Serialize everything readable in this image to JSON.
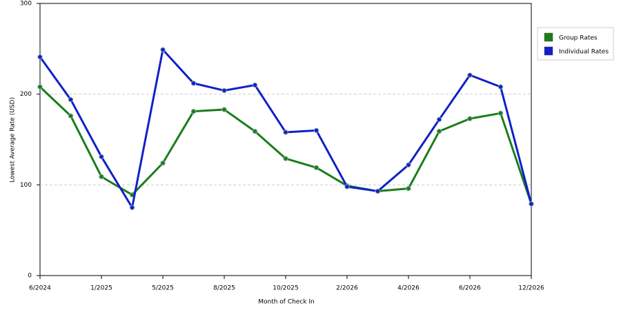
{
  "chart_data": {
    "type": "line",
    "x_label": "Month of Check In",
    "y_label": "Lowest Average Rate (USD)",
    "categories": [
      "6/2024",
      null,
      "1/2025",
      null,
      "5/2025",
      null,
      "8/2025",
      null,
      "10/2025",
      null,
      "2/2026",
      null,
      "4/2026",
      null,
      "6/2026",
      null,
      "12/2026"
    ],
    "series": [
      {
        "name": "Group Rates",
        "color": "#1a7d1a",
        "values": [
          208,
          176,
          109,
          89,
          124,
          181,
          183,
          159,
          129,
          119,
          99,
          93,
          96,
          159,
          173,
          179,
          79
        ]
      },
      {
        "name": "Individual Rates",
        "color": "#1020c8",
        "values": [
          241,
          194,
          131,
          75,
          249,
          212,
          204,
          210,
          158,
          160,
          98,
          93,
          122,
          172,
          221,
          208,
          79
        ]
      }
    ],
    "ylim": [
      0,
      300
    ],
    "yticks": [
      0,
      100,
      200,
      300
    ],
    "grid": true,
    "legend": "right"
  }
}
